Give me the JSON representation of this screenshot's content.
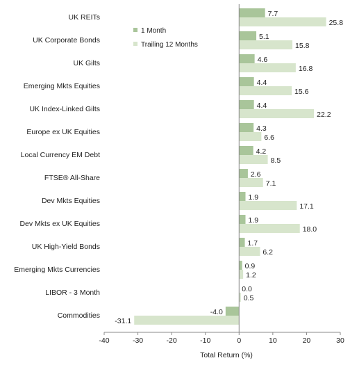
{
  "chart_data": {
    "type": "bar",
    "orientation": "horizontal",
    "categories": [
      "UK REITs",
      "UK Corporate Bonds",
      "UK Gilts",
      "Emerging Mkts Equities",
      "UK Index-Linked Gilts",
      "Europe ex UK Equities",
      "Local Currency EM Debt",
      "FTSE® All-Share",
      "Dev Mkts Equities",
      "Dev Mkts ex UK Equities",
      "UK High-Yield Bonds",
      "Emerging Mkts Currencies",
      "LIBOR - 3 Month",
      "Commodities"
    ],
    "series": [
      {
        "name": "1 Month",
        "color": "#a9c59a",
        "values": [
          7.7,
          5.1,
          4.6,
          4.4,
          4.4,
          4.3,
          4.2,
          2.6,
          1.9,
          1.9,
          1.7,
          0.9,
          0.0,
          -4.0
        ],
        "labels": [
          "7.7",
          "5.1",
          "4.6",
          "4.4",
          "4.4",
          "4.3",
          "4.2",
          "2.6",
          "1.9",
          "1.9",
          "1.7",
          "0.9",
          "0.0",
          "-4.0"
        ]
      },
      {
        "name": "Trailing 12 Months",
        "color": "#d7e5cc",
        "values": [
          25.8,
          15.8,
          16.8,
          15.6,
          22.2,
          6.6,
          8.5,
          7.1,
          17.1,
          18.0,
          6.2,
          1.2,
          0.5,
          -31.1
        ],
        "labels": [
          "25.8",
          "15.8",
          "16.8",
          "15.6",
          "22.2",
          "6.6",
          "8.5",
          "7.1",
          "17.1",
          "18.0",
          "6.2",
          "1.2",
          "0.5",
          "-31.1"
        ]
      }
    ],
    "xlabel": "Total Return (%)",
    "xlim": [
      -40,
      30
    ],
    "xticks": [
      -40,
      -30,
      -20,
      -10,
      0,
      10,
      20,
      30
    ],
    "grid": false,
    "legend_position": "top-center"
  }
}
